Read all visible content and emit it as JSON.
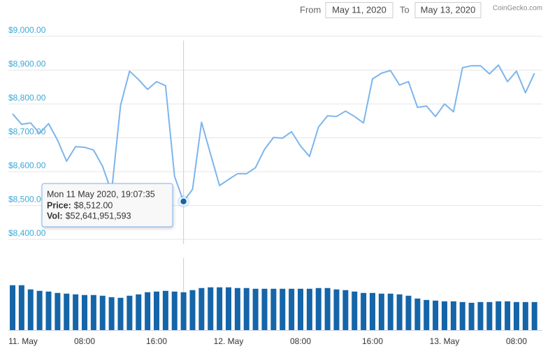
{
  "header": {
    "from_label": "From",
    "from_date": "May 11, 2020",
    "to_label": "To",
    "to_date": "May 13, 2020",
    "credit": "CoinGecko.com"
  },
  "chart_data": [
    {
      "type": "line",
      "color": "#7cb5ec",
      "grid": true,
      "values": [
        8771,
        8740,
        8744,
        8713,
        8742,
        8693,
        8631,
        8674,
        8672,
        8664,
        8616,
        8540,
        8796,
        8897,
        8872,
        8843,
        8866,
        8854,
        8586,
        8512,
        8548,
        8746,
        8652,
        8559,
        8577,
        8594,
        8594,
        8612,
        8666,
        8701,
        8699,
        8718,
        8676,
        8645,
        8732,
        8765,
        8763,
        8779,
        8763,
        8744,
        8874,
        8891,
        8899,
        8856,
        8866,
        8790,
        8794,
        8763,
        8800,
        8777,
        8907,
        8913,
        8913,
        8889,
        8915,
        8866,
        8897,
        8833,
        8891
      ],
      "ylim": [
        8400,
        9000
      ],
      "yticks": [
        {
          "value": 8400,
          "label": "$8,400.00"
        },
        {
          "value": 8500,
          "label": "$8,500.00"
        },
        {
          "value": 8600,
          "label": "$8,600.00"
        },
        {
          "value": 8700,
          "label": "$8,700.00"
        },
        {
          "value": 8800,
          "label": "$8,800.00"
        },
        {
          "value": 8900,
          "label": "$8,900.00"
        },
        {
          "value": 9000,
          "label": "$9,000.00"
        }
      ],
      "tooltip": {
        "title": "Mon 11 May 2020, 19:07:35",
        "price_label": "Price:",
        "price": "$8,512.00",
        "vol_label": "Vol:",
        "vol": "$52,641,951,593"
      }
    },
    {
      "type": "bar",
      "color": "#1565a8",
      "categories": [
        "11. May",
        null,
        null,
        null,
        null,
        null,
        null,
        null,
        "08:00",
        null,
        null,
        null,
        null,
        null,
        null,
        null,
        "16:00",
        null,
        null,
        null,
        null,
        null,
        null,
        null,
        "12. May",
        null,
        null,
        null,
        null,
        null,
        null,
        null,
        "08:00",
        null,
        null,
        null,
        null,
        null,
        null,
        null,
        "16:00",
        null,
        null,
        null,
        null,
        null,
        null,
        null,
        "13. May",
        null,
        null,
        null,
        null,
        null,
        null,
        null,
        "08:00",
        null,
        null
      ],
      "values": [
        62400000000,
        62400000000,
        56600000000,
        54600000000,
        53600000000,
        51700000000,
        50700000000,
        49700000000,
        48800000000,
        48800000000,
        47800000000,
        45800000000,
        44900000000,
        47800000000,
        49700000000,
        52700000000,
        53600000000,
        54600000000,
        53600000000,
        52641951593,
        55600000000,
        58500000000,
        59500000000,
        59500000000,
        59500000000,
        58500000000,
        58500000000,
        57500000000,
        57500000000,
        57500000000,
        57500000000,
        57500000000,
        57500000000,
        57500000000,
        58500000000,
        58500000000,
        56600000000,
        55600000000,
        53600000000,
        51700000000,
        51700000000,
        50700000000,
        50700000000,
        49700000000,
        47800000000,
        43900000000,
        41900000000,
        41000000000,
        40000000000,
        40000000000,
        39000000000,
        38000000000,
        39000000000,
        39000000000,
        40000000000,
        40000000000,
        39000000000,
        39000000000,
        39000000000
      ],
      "ylim": [
        0,
        100000000000
      ]
    }
  ]
}
